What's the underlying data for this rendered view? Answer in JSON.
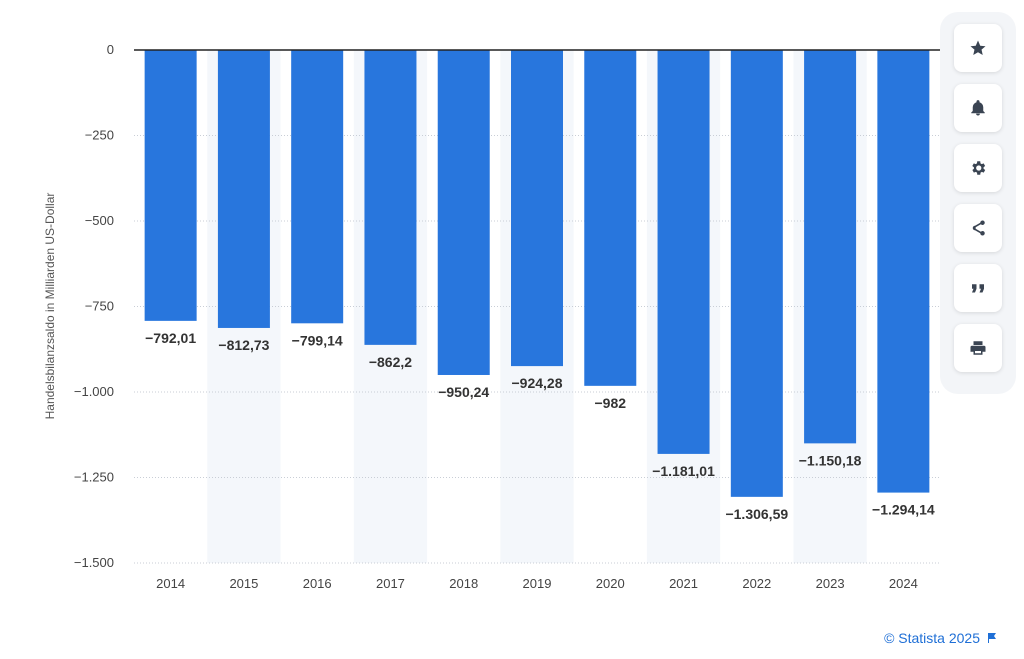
{
  "chart_data": {
    "type": "bar",
    "ylabel": "Handelsbilanzsaldo in Milliarden US-Dollar",
    "ylim": [
      -1500,
      0
    ],
    "yticks": [
      0,
      -250,
      -500,
      -750,
      -1000,
      -1250,
      -1500
    ],
    "ytick_labels": [
      "0",
      "-250",
      "-500",
      "-750",
      "-1.000",
      "-1.250",
      "-1.500"
    ],
    "categories": [
      "2014",
      "2015",
      "2016",
      "2017",
      "2018",
      "2019",
      "2020",
      "2021",
      "2022",
      "2023",
      "2024"
    ],
    "values": [
      -792.01,
      -812.73,
      -799.14,
      -862.2,
      -950.24,
      -924.28,
      -982,
      -1181.01,
      -1306.59,
      -1150.18,
      -1294.14
    ],
    "value_labels": [
      "-792,01",
      "-812,73",
      "-799,14",
      "-862,2",
      "-950,24",
      "-924,28",
      "-982",
      "-1.181,01",
      "-1.306,59",
      "-1.150,18",
      "-1.294,14"
    ],
    "bar_color": "#2876dd",
    "grid": true,
    "legend": "none"
  },
  "toolbar": {
    "buttons": [
      {
        "name": "favorite-button",
        "icon": "star-icon"
      },
      {
        "name": "notification-button",
        "icon": "bell-icon"
      },
      {
        "name": "settings-button",
        "icon": "gear-icon"
      },
      {
        "name": "share-button",
        "icon": "share-icon"
      },
      {
        "name": "cite-button",
        "icon": "quote-icon"
      },
      {
        "name": "print-button",
        "icon": "printer-icon"
      }
    ]
  },
  "credit": {
    "text": "© Statista 2025",
    "icon": "flag-icon"
  }
}
